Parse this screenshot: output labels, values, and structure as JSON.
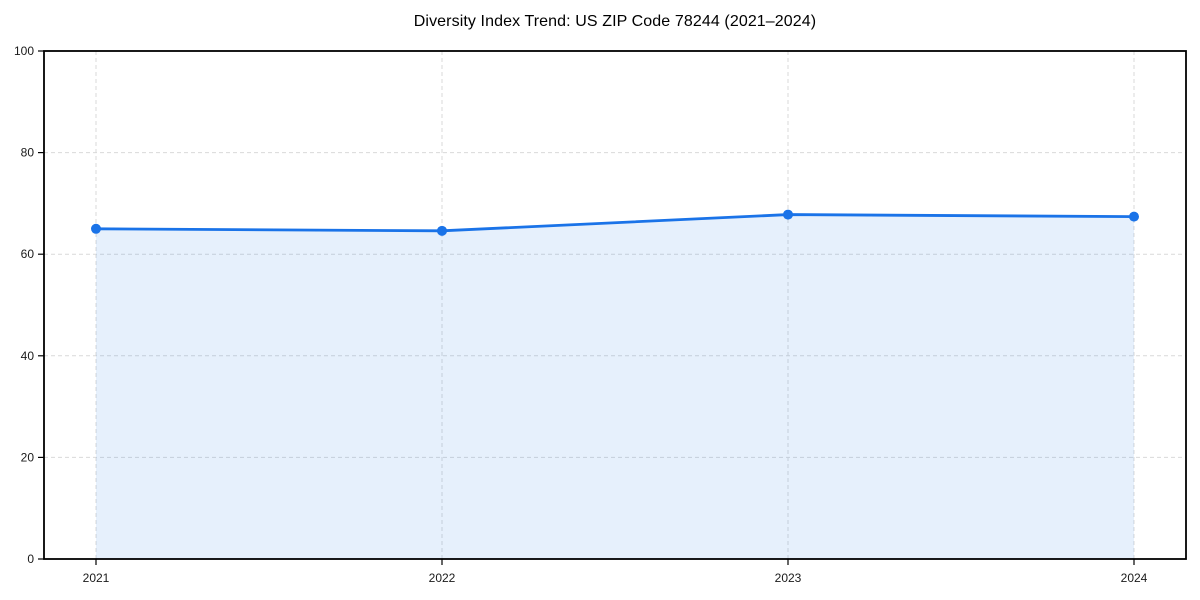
{
  "page": {
    "background": "#ffffff"
  },
  "chart_data": {
    "type": "area",
    "title": "Diversity Index Trend: US ZIP Code 78244 (2021–2024)",
    "x": [
      "2021",
      "2022",
      "2023",
      "2024"
    ],
    "values": [
      65.0,
      64.6,
      67.8,
      67.4
    ],
    "xlabel": "",
    "ylabel": "",
    "ylim": [
      0,
      100
    ],
    "yticks": [
      0,
      20,
      40,
      60,
      80,
      100
    ],
    "grid": "dashed-both-axes",
    "legend": "none",
    "marker": "circle",
    "colors": {
      "line": "#1a73e8",
      "fill": "rgba(26,115,232,0.11)",
      "grid": "#d9d9d9",
      "axis": "#000000",
      "tick_label": "#1a1a1a",
      "title": "#000000"
    }
  }
}
